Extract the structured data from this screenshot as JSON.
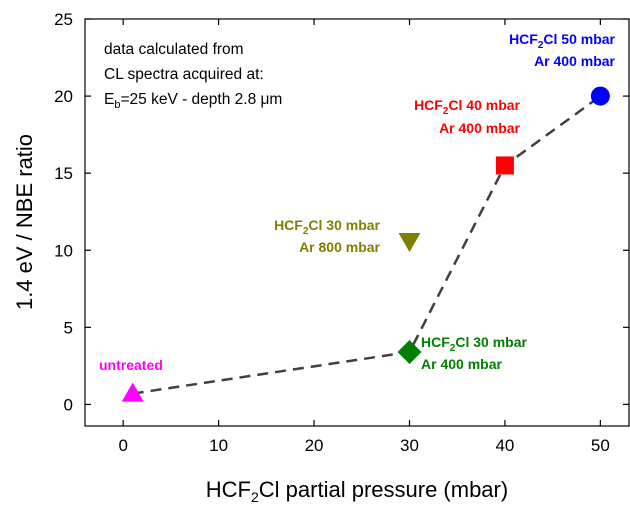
{
  "chart_data": {
    "type": "scatter",
    "xlabel": {
      "pre": "HCF",
      "sub": "2",
      "post": "Cl partial pressure  (mbar)"
    },
    "ylabel": "1.4 eV / NBE  ratio",
    "xlim": [
      -4,
      53
    ],
    "ylim": [
      -1.4,
      25
    ],
    "x_ticks": [
      0,
      10,
      20,
      30,
      40,
      50
    ],
    "y_ticks": [
      0,
      5,
      10,
      15,
      20,
      25
    ],
    "grid": false,
    "note": {
      "line1": "data calculated from",
      "line2": "CL spectra acquired at:",
      "line3_pre": "E",
      "line3_sub": "b",
      "line3_post": "=25 keV - depth 2.8 μm"
    },
    "points": [
      {
        "x": 1,
        "y": 0.7,
        "marker": "triangle-up",
        "color": "#ff00ff",
        "label_line1": "untreated"
      },
      {
        "x": 30,
        "y": 3.4,
        "marker": "diamond",
        "color": "#008000",
        "label_line1_pre": "HCF",
        "label_line1_sub": "2",
        "label_line1_post": "Cl 30 mbar",
        "label_line2": "Ar 400 mbar"
      },
      {
        "x": 30,
        "y": 10.6,
        "marker": "triangle-down",
        "color": "#808000",
        "label_line1_pre": "HCF",
        "label_line1_sub": "2",
        "label_line1_post": "Cl 30 mbar",
        "label_line2": "Ar 800 mbar"
      },
      {
        "x": 40,
        "y": 15.5,
        "marker": "square",
        "color": "#ff0000",
        "label_line1_pre": "HCF",
        "label_line1_sub": "2",
        "label_line1_post": "Cl 40 mbar",
        "label_line2": "Ar 400 mbar"
      },
      {
        "x": 50,
        "y": 20,
        "marker": "circle",
        "color": "#0000ff",
        "label_line1_pre": "HCF",
        "label_line1_sub": "2",
        "label_line1_post": "Cl 50 mbar",
        "label_line2": "Ar 400 mbar"
      }
    ],
    "dashed_path": {
      "x": [
        1,
        30,
        40,
        50
      ],
      "y": [
        0.7,
        3.4,
        15.5,
        20
      ]
    }
  }
}
